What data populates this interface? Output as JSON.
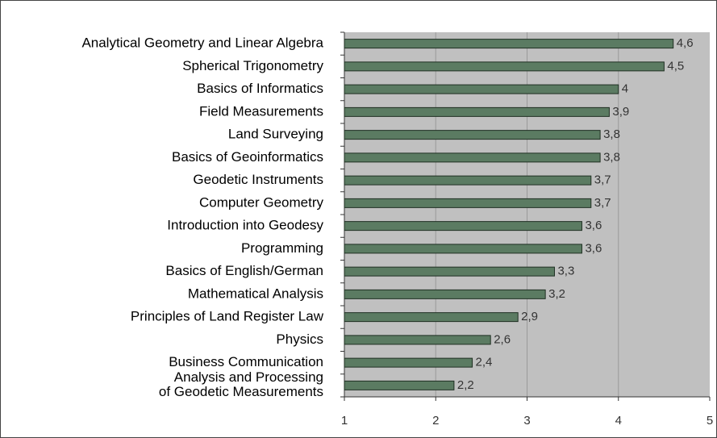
{
  "chart_data": {
    "type": "barh",
    "categories": [
      "Analytical Geometry and Linear Algebra",
      "Spherical Trigonometry",
      "Basics of Informatics",
      "Field Measurements",
      "Land Surveying",
      "Basics of Geoinformatics",
      "Geodetic Instruments",
      "Computer Geometry",
      "Introduction into Geodesy",
      "Programming",
      "Basics of English/German",
      "Mathematical Analysis",
      "Principles of Land Register Law",
      "Physics",
      "Business Communication",
      "Analysis and Processing\nof Geodetic Measurements"
    ],
    "values": [
      4.6,
      4.5,
      4,
      3.9,
      3.8,
      3.8,
      3.7,
      3.7,
      3.6,
      3.6,
      3.3,
      3.2,
      2.9,
      2.6,
      2.4,
      2.2
    ],
    "value_labels": [
      "4,6",
      "4,5",
      "4",
      "3,9",
      "3,8",
      "3,8",
      "3,7",
      "3,7",
      "3,6",
      "3,6",
      "3,3",
      "3,2",
      "2,9",
      "2,6",
      "2,4",
      "2,2"
    ],
    "color": "#5b7b62",
    "xlim": [
      1,
      5
    ],
    "xticks": [
      1,
      2,
      3,
      4,
      5
    ],
    "grid": true
  }
}
